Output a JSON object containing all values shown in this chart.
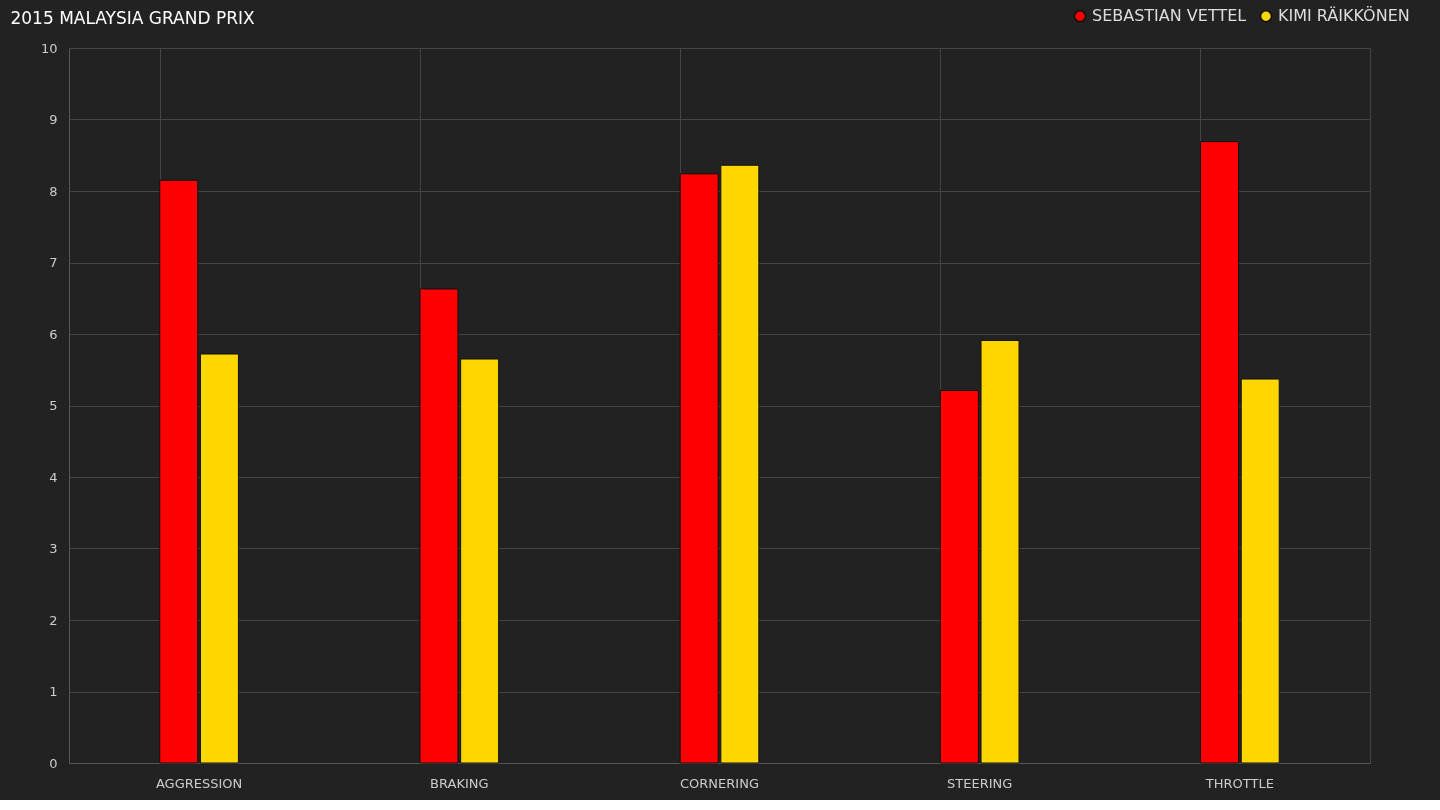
{
  "chart_data": {
    "type": "bar",
    "title": "2015 MALAYSIA GRAND PRIX",
    "categories": [
      "AGGRESSION",
      "BRAKING",
      "CORNERING",
      "STEERING",
      "THROTTLE"
    ],
    "series": [
      {
        "name": "SEBASTIAN VETTEL",
        "color": "#ff0000",
        "values": [
          8.15,
          6.63,
          8.24,
          5.21,
          8.69
        ]
      },
      {
        "name": "KIMI RÄIKKÖNEN",
        "color": "#ffd700",
        "values": [
          5.72,
          5.65,
          8.36,
          5.91,
          5.37
        ]
      }
    ],
    "ylim": [
      0,
      10
    ],
    "yticks": [
      0,
      1,
      2,
      3,
      4,
      5,
      6,
      7,
      8,
      9,
      10
    ],
    "grid": true,
    "legend": "top right"
  }
}
